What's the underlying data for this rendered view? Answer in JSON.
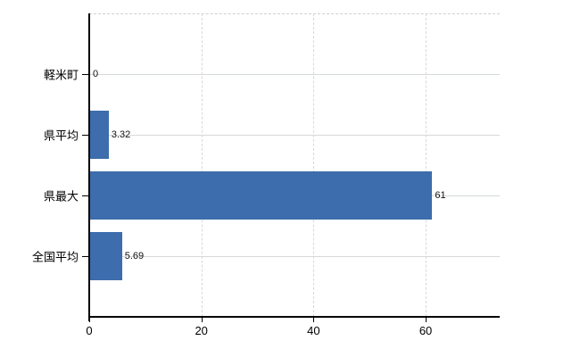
{
  "chart_data": {
    "type": "bar",
    "orientation": "horizontal",
    "title": "",
    "categories": [
      "軽米町",
      "県平均",
      "県最大",
      "全国平均"
    ],
    "values": [
      0,
      3.32,
      61,
      5.69
    ],
    "value_labels": [
      "0",
      "3.32",
      "61",
      "5.69"
    ],
    "x_ticks": [
      0,
      20,
      40,
      60
    ],
    "x_tick_labels": [
      "0",
      "20",
      "40",
      "60"
    ],
    "xlim": [
      0,
      73.2
    ],
    "grid": {
      "vertical": true,
      "horizontal": true
    },
    "legend_position": "none",
    "colors": {
      "bar": "#3d6dac",
      "axis": "#000000",
      "horizontal_gridline": "#d5dbd5",
      "vertical_gridline": "#d9d9d9",
      "plot_top_border": "#cfcfcf",
      "label_text": "#000000",
      "background": "#ffffff"
    }
  }
}
